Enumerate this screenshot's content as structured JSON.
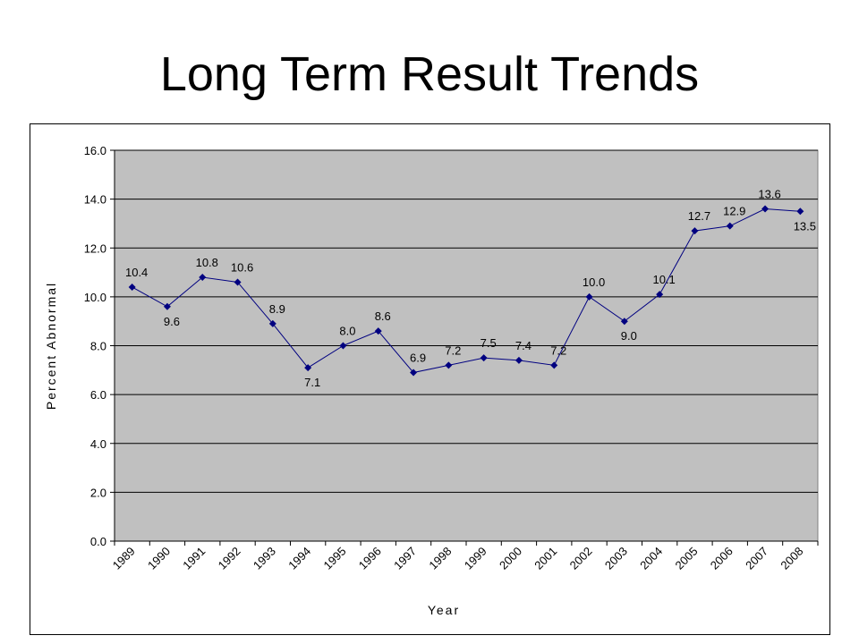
{
  "slide": {
    "title": "Long Term Result Trends"
  },
  "chart_data": {
    "type": "line",
    "title": "",
    "xlabel": "Year",
    "ylabel": "Percent Abnormal",
    "categories": [
      "1989",
      "1990",
      "1991",
      "1992",
      "1993",
      "1994",
      "1995",
      "1996",
      "1997",
      "1998",
      "1999",
      "2000",
      "2001",
      "2002",
      "2003",
      "2004",
      "2005",
      "2006",
      "2007",
      "2008"
    ],
    "series": [
      {
        "values": [
          10.4,
          9.6,
          10.8,
          10.6,
          8.9,
          7.1,
          8.0,
          8.6,
          6.9,
          7.2,
          7.5,
          7.4,
          7.2,
          10.0,
          9.0,
          10.1,
          12.7,
          12.9,
          13.6,
          13.5
        ]
      }
    ],
    "data_labels": [
      "10.4",
      "9.6",
      "10.8",
      "10.6",
      "8.9",
      "7.1",
      "8.0",
      "8.6",
      "6.9",
      "7.2",
      "7.5",
      "7.4",
      "7.2",
      "10.0",
      "9.0",
      "10.1",
      "12.7",
      "12.9",
      "13.6",
      "13.5"
    ],
    "ylim": [
      0,
      16
    ],
    "yticks": [
      "0.0",
      "2.0",
      "4.0",
      "6.0",
      "8.0",
      "10.0",
      "12.0",
      "14.0",
      "16.0"
    ],
    "grid": true,
    "plot_background": "#c0c0c0",
    "line_color": "#000080",
    "legend": false
  }
}
